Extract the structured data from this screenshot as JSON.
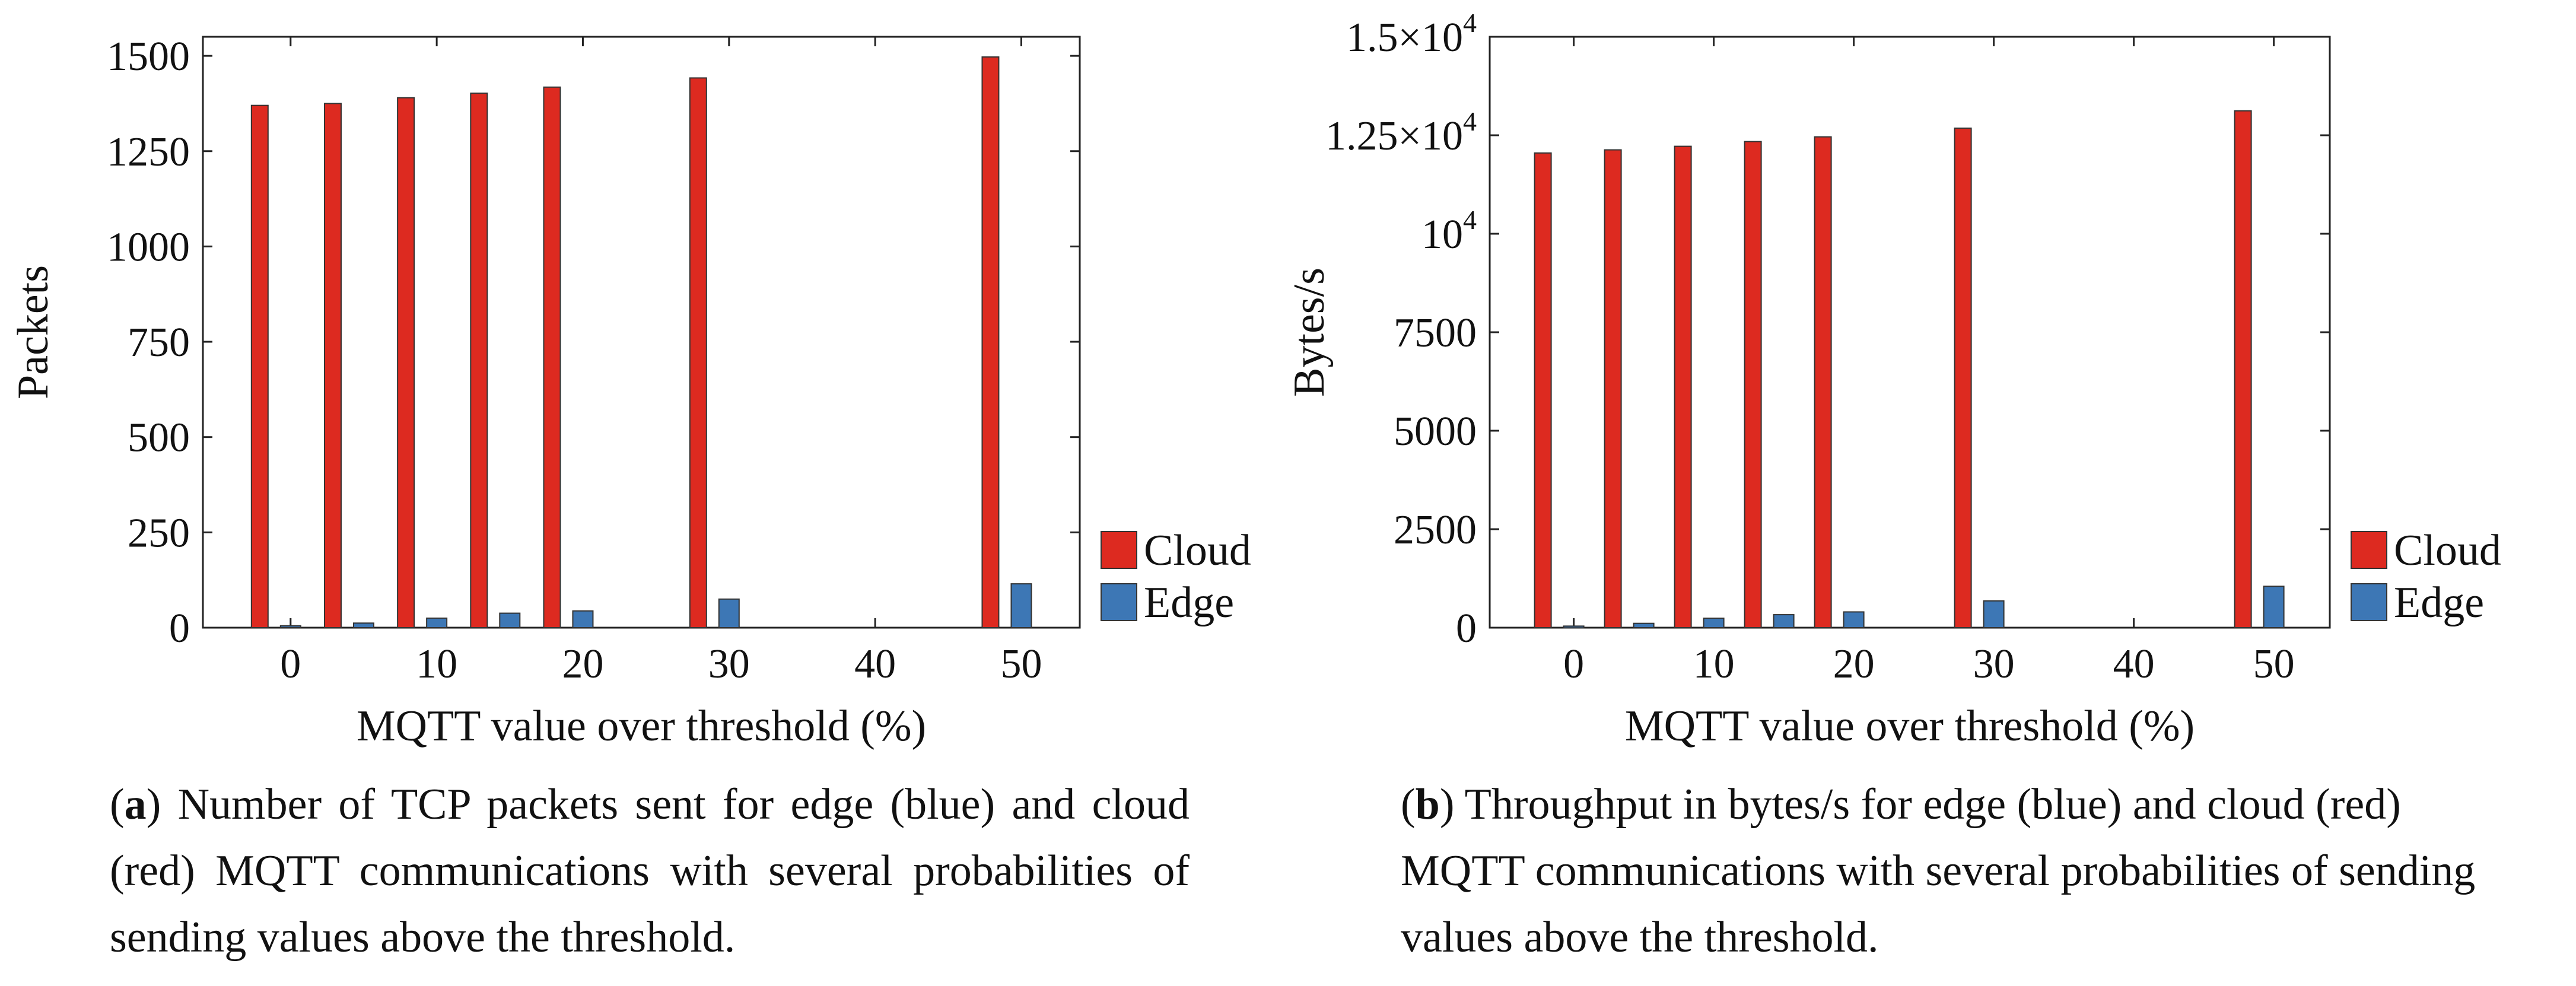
{
  "chart_data": [
    {
      "type": "bar",
      "panel": "a",
      "categories": [
        "0",
        "5",
        "10",
        "15",
        "20",
        "30",
        "50"
      ],
      "x": [
        0,
        5,
        10,
        15,
        20,
        30,
        50
      ],
      "series": [
        {
          "name": "Cloud",
          "color": "#dd2a20",
          "values": [
            1370,
            1375,
            1390,
            1402,
            1418,
            1442,
            1497
          ]
        },
        {
          "name": "Edge",
          "color": "#3d77b5",
          "values": [
            5,
            12,
            25,
            38,
            44,
            75,
            115
          ]
        }
      ],
      "xticks": [
        "0",
        "10",
        "20",
        "30",
        "40",
        "50"
      ],
      "xtick_values": [
        0,
        10,
        20,
        30,
        40,
        50
      ],
      "yticks": [
        "0",
        "250",
        "500",
        "750",
        "1000",
        "1250",
        "1500"
      ],
      "ytick_values": [
        0,
        250,
        500,
        750,
        1000,
        1250,
        1500
      ],
      "xlim": [
        -6,
        54
      ],
      "ylim": [
        0,
        1550
      ],
      "xlabel": "MQTT value over threshold (%)",
      "ylabel": "Packets",
      "legend": [
        "Cloud",
        "Edge"
      ],
      "legend_position": "right-bottom, outside plot"
    },
    {
      "type": "bar",
      "panel": "b",
      "categories": [
        "0",
        "5",
        "10",
        "15",
        "20",
        "30",
        "50"
      ],
      "x": [
        0,
        5,
        10,
        15,
        20,
        30,
        50
      ],
      "series": [
        {
          "name": "Cloud",
          "color": "#dd2a20",
          "values": [
            12050,
            12130,
            12220,
            12340,
            12460,
            12680,
            13120
          ]
        },
        {
          "name": "Edge",
          "color": "#3d77b5",
          "values": [
            40,
            110,
            240,
            330,
            400,
            680,
            1050
          ]
        }
      ],
      "xticks": [
        "0",
        "10",
        "20",
        "30",
        "40",
        "50"
      ],
      "xtick_values": [
        0,
        10,
        20,
        30,
        40,
        50
      ],
      "yticks": [
        "0",
        "2500",
        "5000",
        "7500",
        "10",
        "1.25×10",
        "1.5×10"
      ],
      "ytick_exponents": [
        "",
        "",
        "",
        "",
        "4",
        "4",
        "4"
      ],
      "ytick_values": [
        0,
        2500,
        5000,
        7500,
        10000,
        12500,
        15000
      ],
      "xlim": [
        -6,
        54
      ],
      "ylim": [
        0,
        15000
      ],
      "xlabel": "MQTT value over threshold (%)",
      "ylabel": "Bytes/s",
      "legend": [
        "Cloud",
        "Edge"
      ],
      "legend_position": "right-bottom, outside plot"
    }
  ],
  "captions": [
    {
      "label": "a",
      "open": "(",
      "close": ")",
      "text": " Number of TCP packets sent for edge (blue) and cloud (red) MQTT communications with several probabilities of sending values above the threshold."
    },
    {
      "label": "b",
      "open": "(",
      "close": ")",
      "text": " Throughput in bytes/s for edge (blue) and cloud (red) MQTT communications with several probabilities of sending values above the threshold."
    }
  ]
}
